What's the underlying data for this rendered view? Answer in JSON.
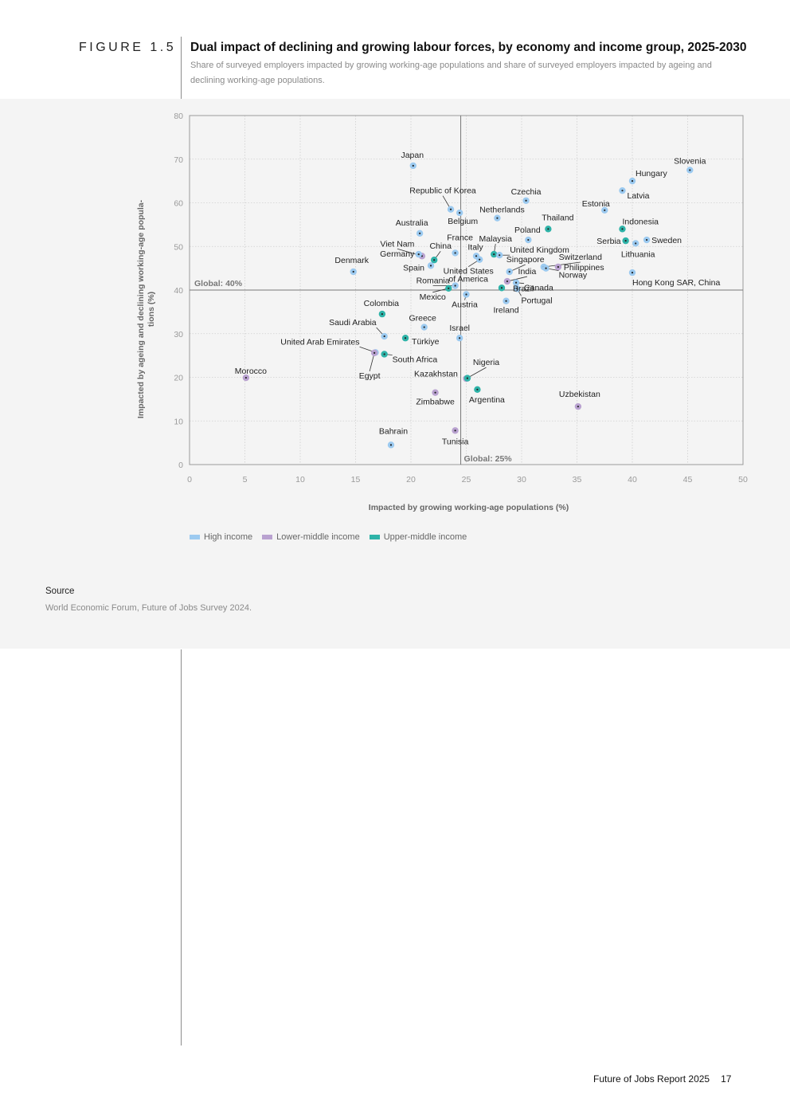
{
  "figure": {
    "label": "FIGURE 1.5",
    "title": "Dual impact of declining and growing labour forces, by economy and income group, 2025-2030",
    "subtitle": "Share of surveyed employers impacted by growing working-age populations and share of surveyed employers impacted by ageing and declining working-age populations."
  },
  "chart_data": {
    "type": "scatter",
    "xlabel": "Impacted by growing working-age populations (%)",
    "ylabel": "Impacted by ageing and declining working-age populations (%)",
    "xlim": [
      0,
      50
    ],
    "ylim": [
      0,
      80
    ],
    "x_ticks": [
      0,
      5,
      10,
      15,
      20,
      25,
      30,
      35,
      40,
      45,
      50
    ],
    "y_ticks": [
      0,
      10,
      20,
      30,
      40,
      50,
      60,
      70,
      80
    ],
    "grid": true,
    "reference_lines": {
      "horizontal": {
        "value": 40,
        "label": "Global: 40%"
      },
      "vertical": {
        "value": 24.5,
        "label": "Global: 25%"
      }
    },
    "series": [
      {
        "name": "High income",
        "color": "#9ccaf0"
      },
      {
        "name": "Lower-middle income",
        "color": "#b9a2d0"
      },
      {
        "name": "Upper-middle income",
        "color": "#2eb3a8"
      }
    ],
    "points": [
      {
        "name": "Japan",
        "x": 20.2,
        "y": 68.5,
        "group": 0
      },
      {
        "name": "Slovenia",
        "x": 45.2,
        "y": 67.5,
        "group": 0
      },
      {
        "name": "Hungary",
        "x": 40.0,
        "y": 65.0,
        "group": 0
      },
      {
        "name": "Latvia",
        "x": 39.1,
        "y": 62.8,
        "group": 0
      },
      {
        "name": "Czechia",
        "x": 30.4,
        "y": 60.5,
        "group": 0
      },
      {
        "name": "Estonia",
        "x": 37.5,
        "y": 58.3,
        "group": 0
      },
      {
        "name": "Republic of Korea",
        "x": 23.6,
        "y": 58.5,
        "group": 0
      },
      {
        "name": "Belgium",
        "x": 24.4,
        "y": 57.7,
        "group": 0
      },
      {
        "name": "Netherlands",
        "x": 27.8,
        "y": 56.5,
        "group": 0
      },
      {
        "name": "Thailand",
        "x": 32.4,
        "y": 54.0,
        "group": 2
      },
      {
        "name": "Indonesia",
        "x": 39.1,
        "y": 54.0,
        "group": 2
      },
      {
        "name": "Australia",
        "x": 20.8,
        "y": 53.0,
        "group": 0
      },
      {
        "name": "Poland",
        "x": 30.6,
        "y": 51.5,
        "group": 0
      },
      {
        "name": "Serbia",
        "x": 39.4,
        "y": 51.3,
        "group": 2
      },
      {
        "name": "Sweden",
        "x": 41.3,
        "y": 51.5,
        "group": 0
      },
      {
        "name": "Lithuania",
        "x": 40.3,
        "y": 50.7,
        "group": 0
      },
      {
        "name": "France",
        "x": 24.0,
        "y": 48.5,
        "group": 0
      },
      {
        "name": "Malaysia",
        "x": 27.5,
        "y": 48.2,
        "group": 2
      },
      {
        "name": "Viet Nam",
        "x": 21.0,
        "y": 47.8,
        "group": 1
      },
      {
        "name": "Italy",
        "x": 25.9,
        "y": 47.8,
        "group": 0
      },
      {
        "name": "United Kingdom",
        "x": 28.0,
        "y": 48.0,
        "group": 0
      },
      {
        "name": "Germany",
        "x": 20.7,
        "y": 48.2,
        "group": 0
      },
      {
        "name": "China",
        "x": 22.1,
        "y": 46.9,
        "group": 2
      },
      {
        "name": "United States of America",
        "x": 26.2,
        "y": 47.0,
        "group": 0
      },
      {
        "name": "Spain",
        "x": 21.8,
        "y": 45.6,
        "group": 0
      },
      {
        "name": "Singapore",
        "x": 28.9,
        "y": 44.2,
        "group": 0
      },
      {
        "name": "Switzerland",
        "x": 32.0,
        "y": 45.3,
        "group": 0
      },
      {
        "name": "Philippines",
        "x": 33.3,
        "y": 45.3,
        "group": 1
      },
      {
        "name": "Norway",
        "x": 32.2,
        "y": 45.0,
        "group": 0
      },
      {
        "name": "Hong Kong SAR, China",
        "x": 40.0,
        "y": 44.0,
        "group": 0
      },
      {
        "name": "Denmark",
        "x": 14.8,
        "y": 44.2,
        "group": 0
      },
      {
        "name": "India",
        "x": 28.7,
        "y": 42.0,
        "group": 1
      },
      {
        "name": "Romania",
        "x": 24.0,
        "y": 41.0,
        "group": 0
      },
      {
        "name": "Canada",
        "x": 29.5,
        "y": 41.7,
        "group": 0
      },
      {
        "name": "Portugal",
        "x": 29.6,
        "y": 40.3,
        "group": 0
      },
      {
        "name": "Ireland",
        "x": 28.6,
        "y": 37.5,
        "group": 0
      },
      {
        "name": "Mexico",
        "x": 23.4,
        "y": 40.4,
        "group": 2
      },
      {
        "name": "Brazil",
        "x": 28.2,
        "y": 40.5,
        "group": 2
      },
      {
        "name": "Austria",
        "x": 25.0,
        "y": 39.0,
        "group": 0
      },
      {
        "name": "Colombia",
        "x": 17.4,
        "y": 34.5,
        "group": 2
      },
      {
        "name": "Greece",
        "x": 21.2,
        "y": 31.5,
        "group": 0
      },
      {
        "name": "Saudi Arabia",
        "x": 17.6,
        "y": 29.4,
        "group": 0
      },
      {
        "name": "Israel",
        "x": 24.4,
        "y": 29.0,
        "group": 0
      },
      {
        "name": "Türkiye",
        "x": 19.5,
        "y": 29.0,
        "group": 2
      },
      {
        "name": "United Arab Emirates",
        "x": 16.8,
        "y": 25.7,
        "group": 0
      },
      {
        "name": "South Africa",
        "x": 17.6,
        "y": 25.3,
        "group": 2
      },
      {
        "name": "Egypt",
        "x": 16.7,
        "y": 25.6,
        "group": 1
      },
      {
        "name": "Morocco",
        "x": 5.1,
        "y": 19.9,
        "group": 1
      },
      {
        "name": "Nigeria",
        "x": 25.0,
        "y": 19.7,
        "group": 1
      },
      {
        "name": "Kazakhstan",
        "x": 25.1,
        "y": 19.8,
        "group": 2
      },
      {
        "name": "Argentina",
        "x": 26.0,
        "y": 17.2,
        "group": 2
      },
      {
        "name": "Zimbabwe",
        "x": 22.2,
        "y": 16.5,
        "group": 1
      },
      {
        "name": "Uzbekistan",
        "x": 35.1,
        "y": 13.3,
        "group": 1
      },
      {
        "name": "Tunisia",
        "x": 24.0,
        "y": 7.8,
        "group": 1
      },
      {
        "name": "Bahrain",
        "x": 18.2,
        "y": 4.5,
        "group": 0
      }
    ]
  },
  "source": {
    "label": "Source",
    "text": "World Economic Forum, Future of Jobs Survey 2024."
  },
  "footer": {
    "report": "Future of Jobs Report 2025",
    "page": "17"
  }
}
